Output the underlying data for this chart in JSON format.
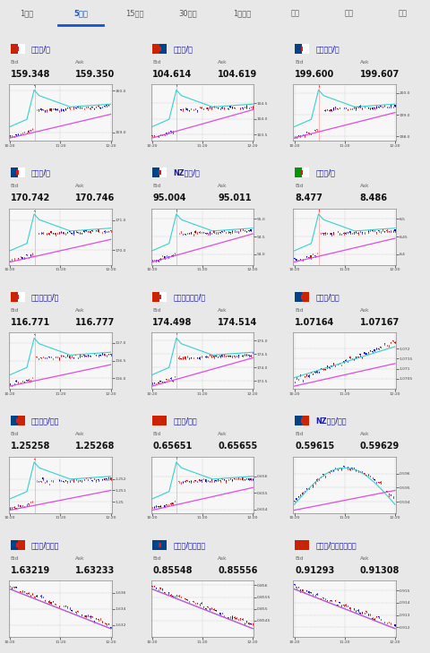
{
  "tabs": [
    "1分足",
    "5分足",
    "15分足",
    "30分足",
    "1時間足",
    "日足",
    "週足",
    "月足"
  ],
  "active_tab_idx": 1,
  "bg_color": "#e8e8e8",
  "card_bg": "#ffffff",
  "pairs": [
    {
      "name": "米ドル/円",
      "flag1": "#cc2200",
      "flag2": "#ffffff",
      "bid": "159.348",
      "ask": "159.350",
      "ylo": 158.8,
      "yhi": 160.15,
      "yticks": [
        159.0,
        160.0
      ],
      "candles": "spike_up",
      "pink": [
        0.0,
        0.42
      ],
      "cyan_shape": "spike"
    },
    {
      "name": "豪ドル/円",
      "flag1": "#cc2200",
      "flag2": "#004488",
      "bid": "104.614",
      "ask": "104.619",
      "ylo": 103.3,
      "yhi": 105.1,
      "yticks": [
        103.5,
        104.0,
        104.5
      ],
      "candles": "spike_up",
      "pink": [
        0.0,
        0.5
      ],
      "cyan_shape": "spike"
    },
    {
      "name": "英ポンド/円",
      "flag1": "#004488",
      "flag2": "#ffffff",
      "bid": "199.600",
      "ask": "199.607",
      "ylo": 197.8,
      "yhi": 200.4,
      "yticks": [
        198.0,
        199.0,
        200.0
      ],
      "candles": "spike_up",
      "pink": [
        0.0,
        0.45
      ],
      "cyan_shape": "spike"
    },
    {
      "name": "ユーロ/円",
      "flag1": "#004488",
      "flag2": "#ffffff",
      "bid": "170.742",
      "ask": "170.746",
      "ylo": 169.5,
      "yhi": 171.4,
      "yticks": [
        170.0,
        171.0
      ],
      "candles": "spike_up",
      "pink": [
        0.0,
        0.4
      ],
      "cyan_shape": "spike"
    },
    {
      "name": "NZドル/円",
      "flag1": "#004488",
      "flag2": "#ffffff",
      "bid": "95.004",
      "ask": "95.011",
      "ylo": 93.7,
      "yhi": 95.3,
      "yticks": [
        94.0,
        94.5,
        95.0
      ],
      "candles": "spike_up",
      "pink": [
        0.0,
        0.5
      ],
      "cyan_shape": "spike"
    },
    {
      "name": "ランド/円",
      "flag1": "#009900",
      "flag2": "#ffffff",
      "bid": "8.477",
      "ask": "8.486",
      "ylo": 8.37,
      "yhi": 8.53,
      "yticks": [
        8.4,
        8.45,
        8.5
      ],
      "candles": "spike_up",
      "pink": [
        0.0,
        0.42
      ],
      "cyan_shape": "spike"
    },
    {
      "name": "カナダドル/円",
      "flag1": "#cc2200",
      "flag2": "#ffffff",
      "bid": "116.771",
      "ask": "116.777",
      "ylo": 115.7,
      "yhi": 117.3,
      "yticks": [
        116.0,
        116.5,
        117.0
      ],
      "candles": "spike_up",
      "pink": [
        0.0,
        0.38
      ],
      "cyan_shape": "spike"
    },
    {
      "name": "スイスフラン/円",
      "flag1": "#cc2200",
      "flag2": "#ffffff",
      "bid": "174.498",
      "ask": "174.514",
      "ylo": 173.2,
      "yhi": 175.3,
      "yticks": [
        173.5,
        174.0,
        174.5,
        175.0
      ],
      "candles": "spike_up",
      "pink": [
        0.0,
        0.5
      ],
      "cyan_shape": "spike"
    },
    {
      "name": "ユーロ/ドル",
      "flag1": "#004488",
      "flag2": "#cc2200",
      "bid": "1.07164",
      "ask": "1.07167",
      "ylo": 1.07,
      "yhi": 1.0728,
      "yticks": [
        1.0705,
        1.071,
        1.0715,
        1.072
      ],
      "candles": "gradual_up",
      "pink": [
        0.0,
        0.4
      ],
      "cyan_shape": "gradual"
    },
    {
      "name": "英ポンド/ドル",
      "flag1": "#004488",
      "flag2": "#cc2200",
      "bid": "1.25258",
      "ask": "1.25268",
      "ylo": 1.249,
      "yhi": 1.254,
      "yticks": [
        1.25,
        1.251,
        1.252
      ],
      "candles": "spike_up",
      "pink": [
        0.0,
        0.35
      ],
      "cyan_shape": "spike"
    },
    {
      "name": "豪ドル/ドル",
      "flag1": "#cc2200",
      "flag2": "#cc2200",
      "bid": "0.65651",
      "ask": "0.65655",
      "ylo": 0.6538,
      "yhi": 0.6572,
      "yticks": [
        0.654,
        0.655,
        0.656
      ],
      "candles": "spike_up",
      "pink": [
        0.0,
        0.4
      ],
      "cyan_shape": "spike"
    },
    {
      "name": "NZドル/ドル",
      "flag1": "#004488",
      "flag2": "#cc2200",
      "bid": "0.59615",
      "ask": "0.59629",
      "ylo": 0.5932,
      "yhi": 0.5972,
      "yticks": [
        0.594,
        0.595,
        0.596
      ],
      "candles": "hump",
      "pink": [
        0.0,
        0.35
      ],
      "cyan_shape": "hump"
    },
    {
      "name": "ユーロ/豪ドル",
      "flag1": "#004488",
      "flag2": "#cc2200",
      "bid": "1.63219",
      "ask": "1.63233",
      "ylo": 1.6305,
      "yhi": 1.6375,
      "yticks": [
        1.632,
        1.634,
        1.636
      ],
      "candles": "down_trend",
      "pink": [
        0.0,
        -0.3
      ],
      "cyan_shape": "down"
    },
    {
      "name": "ユーロ/英ポンド",
      "flag1": "#004488",
      "flag2": "#004488",
      "bid": "0.85548",
      "ask": "0.85556",
      "ylo": 0.8538,
      "yhi": 0.8562,
      "yticks": [
        0.8545,
        0.855,
        0.8555,
        0.856
      ],
      "candles": "down_trend",
      "pink": [
        0.0,
        -0.25
      ],
      "cyan_shape": "down"
    },
    {
      "name": "米ドル/スイスフラン",
      "flag1": "#cc2200",
      "flag2": "#cc2200",
      "bid": "0.91293",
      "ask": "0.91308",
      "ylo": 0.9112,
      "yhi": 0.9158,
      "yticks": [
        0.912,
        0.913,
        0.914,
        0.915
      ],
      "candles": "down_trend",
      "pink": [
        0.0,
        -0.2
      ],
      "cyan_shape": "down"
    }
  ],
  "xtick_labels": [
    "10:20",
    "11:20",
    "12:20"
  ],
  "pink_color": "#dd44dd",
  "cyan_color": "#22cccc",
  "candle_up": "#cc0000",
  "candle_dn": "#0000cc",
  "spike_red": "#ff3333"
}
